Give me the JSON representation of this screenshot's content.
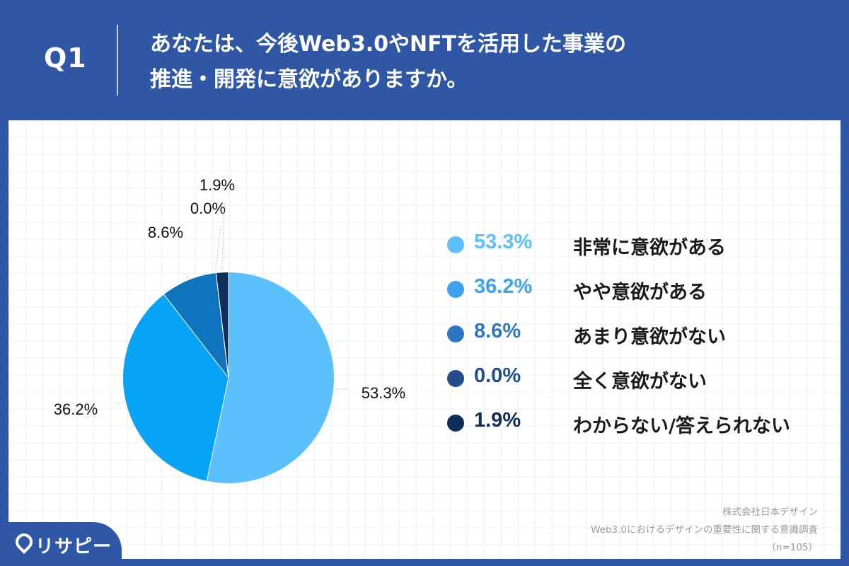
{
  "header": {
    "q_label": "Q1",
    "title_line1": "あなたは、今後Web3.0やNFTを活用した事業の",
    "title_line2": "推進・開発に意欲がありますか。"
  },
  "chart_data": {
    "type": "pie",
    "slices": [
      {
        "label": "非常に意欲がある",
        "value": 53.3,
        "display": "53.3%",
        "color": "#5BC0FB"
      },
      {
        "label": "やや意欲がある",
        "value": 36.2,
        "display": "36.2%",
        "color": "#07A3F7"
      },
      {
        "label": "あまり意欲がない",
        "value": 8.6,
        "display": "8.6%",
        "color": "#0F74BE"
      },
      {
        "label": "全く意欲がない",
        "value": 0.0,
        "display": "0.0%",
        "color": "#1D508C"
      },
      {
        "label": "わからない/答えられない",
        "value": 1.9,
        "display": "1.9%",
        "color": "#0E2F5E"
      }
    ],
    "legend_position": "right"
  },
  "legend": {
    "items": [
      {
        "pct": "53.3%",
        "label": "非常に意欲がある",
        "dot_color": "#5BC0FB",
        "pct_color": "#5BC0FB"
      },
      {
        "pct": "36.2%",
        "label": "やや意欲がある",
        "dot_color": "#3FA1F0",
        "pct_color": "#3FA1F0"
      },
      {
        "pct": "8.6%",
        "label": "あまり意欲がない",
        "dot_color": "#2E76C2",
        "pct_color": "#2E76C2"
      },
      {
        "pct": "0.0%",
        "label": "全く意欲がない",
        "dot_color": "#214E8A",
        "pct_color": "#214E8A"
      },
      {
        "pct": "1.9%",
        "label": "わからない/答えられない",
        "dot_color": "#0F2C5A",
        "pct_color": "#0F2C5A"
      }
    ]
  },
  "source": {
    "company": "株式会社日本デザイン",
    "survey": "Web3.0におけるデザインの重要性に関する意識調査",
    "sample": "（n=105）"
  },
  "logo": {
    "text": "リサピー"
  }
}
